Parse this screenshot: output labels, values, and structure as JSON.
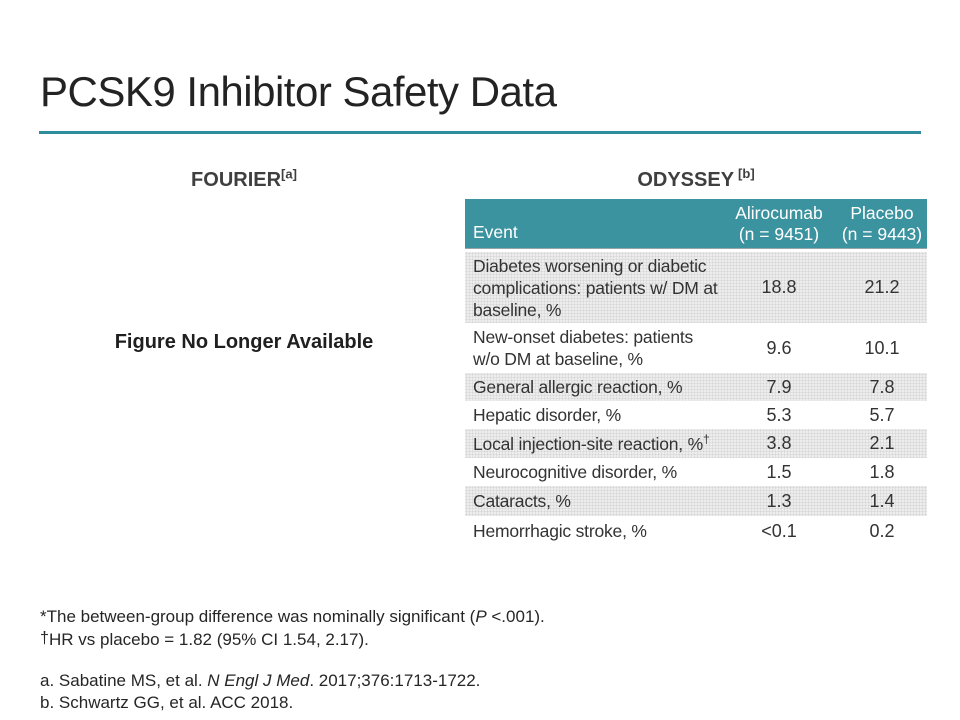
{
  "slide": {
    "title": "PCSK9 Inhibitor Safety Data"
  },
  "colors": {
    "accent_teal_header": "#3C93A0",
    "accent_teal_rule": "#2F8C9D",
    "row_shade": "#EDEDED"
  },
  "left_panel": {
    "heading": "FOURIER",
    "heading_sup": "[a]",
    "placeholder_text": "Figure No Longer Available"
  },
  "right_panel": {
    "heading": "ODYSSEY",
    "heading_sup": "[b]"
  },
  "table": {
    "columns": {
      "event": "Event",
      "col1_name": "Alirocumab",
      "col1_n": "(n = 9451)",
      "col2_name": "Placebo",
      "col2_n": "(n = 9443)"
    },
    "rows": [
      {
        "event": "Diabetes worsening or diabetic complications: patients w/ DM at baseline, %",
        "alirocumab": "18.8",
        "placebo": "21.2"
      },
      {
        "event": "New-onset diabetes: patients w/o DM at baseline, %",
        "alirocumab": "9.6",
        "placebo": "10.1"
      },
      {
        "event": "General allergic reaction, %",
        "alirocumab": "7.9",
        "placebo": "7.8"
      },
      {
        "event": "Hepatic disorder, %",
        "alirocumab": "5.3",
        "placebo": "5.7"
      },
      {
        "event": "Local injection-site reaction, %",
        "event_sup": "†",
        "alirocumab": "3.8",
        "placebo": "2.1"
      },
      {
        "event": "Neurocognitive disorder, %",
        "alirocumab": "1.5",
        "placebo": "1.8"
      },
      {
        "event": "Cataracts, %",
        "alirocumab": "1.3",
        "placebo": "1.4"
      },
      {
        "event": "Hemorrhagic stroke, %",
        "alirocumab": "<0.1",
        "placebo": "0.2"
      }
    ]
  },
  "footnotes": {
    "line1_pre": "*The between-group difference was nominally significant (",
    "line1_italic": "P",
    "line1_post": " <.001).",
    "line2_marker": "†",
    "line2_text": "HR vs placebo = 1.82 (95% CI 1.54, 2.17)."
  },
  "references": {
    "a_pre": "a. Sabatine MS, et al. ",
    "a_italic": "N Engl J Med",
    "a_post": ". 2017;376:1713-1722.",
    "b": "b. Schwartz GG, et al. ACC 2018."
  }
}
